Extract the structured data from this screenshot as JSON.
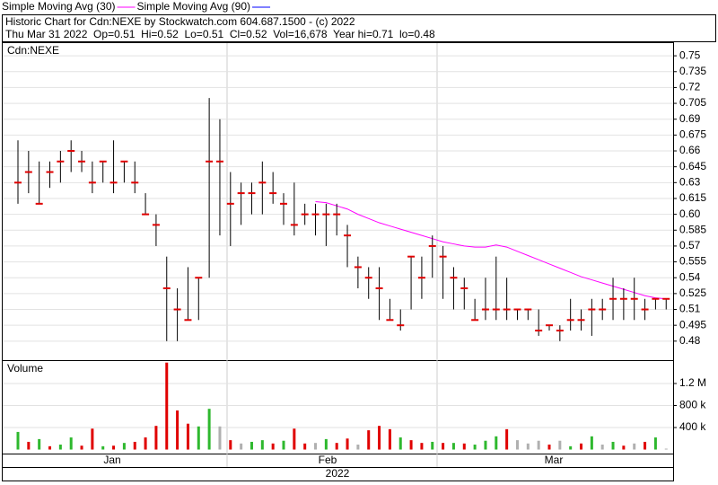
{
  "header": {
    "title": "Historic Chart for Cdn:NEXE by Stockwatch.com 604.687.1500 - (c) 2022",
    "info": "Thu Mar 31 2022  Op=0.51  Hi=0.52  Lo=0.51  Cl=0.52  Vol=16,678  Year hi=0.71  lo=0.48"
  },
  "x_labels": [
    "Jan",
    "Feb",
    "Mar"
  ],
  "year": "2022",
  "chart_data": [
    {
      "type": "ohlc",
      "label": "Cdn:NEXE",
      "color": "#000000",
      "close_color": "#e00000",
      "high": [
        0.67,
        0.66,
        0.65,
        0.65,
        0.66,
        0.67,
        0.66,
        0.65,
        0.65,
        0.67,
        0.65,
        0.65,
        0.62,
        0.6,
        0.56,
        0.53,
        0.55,
        0.54,
        0.71,
        0.69,
        0.64,
        0.63,
        0.63,
        0.65,
        0.64,
        0.62,
        0.63,
        0.61,
        0.61,
        0.61,
        0.61,
        0.59,
        0.56,
        0.55,
        0.55,
        0.52,
        0.51,
        0.56,
        0.56,
        0.58,
        0.57,
        0.55,
        0.54,
        0.52,
        0.54,
        0.56,
        0.54,
        0.51,
        0.51,
        0.51,
        0.495,
        0.495,
        0.52,
        0.51,
        0.52,
        0.52,
        0.54,
        0.53,
        0.54,
        0.52,
        0.52,
        0.52
      ],
      "low": [
        0.61,
        0.62,
        0.61,
        0.625,
        0.63,
        0.64,
        0.64,
        0.62,
        0.63,
        0.62,
        0.63,
        0.62,
        0.6,
        0.57,
        0.48,
        0.48,
        0.5,
        0.5,
        0.54,
        0.58,
        0.57,
        0.59,
        0.6,
        0.6,
        0.61,
        0.59,
        0.58,
        0.59,
        0.58,
        0.57,
        0.58,
        0.55,
        0.53,
        0.52,
        0.5,
        0.5,
        0.49,
        0.51,
        0.52,
        0.54,
        0.52,
        0.51,
        0.51,
        0.5,
        0.5,
        0.5,
        0.5,
        0.5,
        0.5,
        0.485,
        0.49,
        0.48,
        0.49,
        0.49,
        0.485,
        0.5,
        0.5,
        0.5,
        0.5,
        0.5,
        0.51,
        0.51
      ],
      "close": [
        0.63,
        0.64,
        0.61,
        0.64,
        0.65,
        0.66,
        0.65,
        0.63,
        0.65,
        0.63,
        0.65,
        0.63,
        0.6,
        0.59,
        0.53,
        0.51,
        0.5,
        0.54,
        0.65,
        0.65,
        0.61,
        0.62,
        0.62,
        0.63,
        0.62,
        0.61,
        0.59,
        0.6,
        0.6,
        0.6,
        0.6,
        0.58,
        0.55,
        0.54,
        0.53,
        0.5,
        0.495,
        0.56,
        0.54,
        0.57,
        0.56,
        0.54,
        0.53,
        0.5,
        0.51,
        0.51,
        0.51,
        0.51,
        0.51,
        0.49,
        0.495,
        0.49,
        0.5,
        0.5,
        0.51,
        0.51,
        0.52,
        0.52,
        0.52,
        0.51,
        0.52,
        0.52
      ],
      "series": [
        {
          "name": "Simple Moving Avg (30)",
          "color": "#ff00ff",
          "values": [
            null,
            null,
            null,
            null,
            null,
            null,
            null,
            null,
            null,
            null,
            null,
            null,
            null,
            null,
            null,
            null,
            null,
            null,
            null,
            null,
            null,
            null,
            null,
            null,
            null,
            null,
            null,
            null,
            0.612,
            0.611,
            0.608,
            0.605,
            0.6,
            0.596,
            0.592,
            0.589,
            0.586,
            0.583,
            0.58,
            0.577,
            0.574,
            0.572,
            0.57,
            0.569,
            0.569,
            0.571,
            0.569,
            0.565,
            0.561,
            0.557,
            0.553,
            0.549,
            0.545,
            0.541,
            0.538,
            0.535,
            0.532,
            0.529,
            0.526,
            0.523,
            0.521,
            0.52
          ]
        },
        {
          "name": "Simple Moving Avg (90)",
          "color": "#0000ff",
          "values": [
            null,
            null,
            null,
            null,
            null,
            null,
            null,
            null,
            null,
            null,
            null,
            null,
            null,
            null,
            null,
            null,
            null,
            null,
            null,
            null,
            null,
            null,
            null,
            null,
            null,
            null,
            null,
            null,
            null,
            null,
            null,
            null,
            null,
            null,
            null,
            null,
            null,
            null,
            null,
            null,
            null,
            null,
            null,
            null,
            null,
            null,
            null,
            null,
            null,
            null,
            null,
            null,
            null,
            null,
            null,
            null,
            null,
            null,
            null,
            null,
            null,
            null
          ]
        }
      ],
      "ylim": [
        0.462,
        0.762
      ],
      "yticks": [
        0.75,
        0.735,
        0.72,
        0.705,
        0.69,
        0.675,
        0.66,
        0.645,
        0.63,
        0.615,
        {
          "value": 0.6,
          "label": "0.60"
        },
        0.585,
        0.57,
        0.555,
        0.54,
        0.525,
        0.51,
        0.495,
        0.48
      ],
      "grid": true
    },
    {
      "type": "bar",
      "label": "Volume",
      "values": [
        320000,
        140000,
        190000,
        60000,
        90000,
        220000,
        70000,
        380000,
        60000,
        70000,
        120000,
        140000,
        220000,
        430000,
        1580000,
        710000,
        470000,
        420000,
        740000,
        420000,
        170000,
        110000,
        140000,
        170000,
        110000,
        160000,
        380000,
        110000,
        120000,
        190000,
        120000,
        200000,
        90000,
        350000,
        430000,
        370000,
        220000,
        170000,
        120000,
        140000,
        120000,
        120000,
        110000,
        90000,
        160000,
        240000,
        370000,
        170000,
        110000,
        160000,
        90000,
        160000,
        60000,
        110000,
        240000,
        90000,
        140000,
        70000,
        110000,
        140000,
        220000,
        16678
      ],
      "colors": [
        "#2eb82e",
        "#e00000",
        "#2eb82e",
        "#e00000",
        "#2eb82e",
        "#2eb82e",
        "#e00000",
        "#e00000",
        "#2eb82e",
        "#e00000",
        "#2eb82e",
        "#e00000",
        "#e00000",
        "#e00000",
        "#e00000",
        "#e00000",
        "#e00000",
        "#2eb82e",
        "#2eb82e",
        "#b0b0b0",
        "#e00000",
        "#b0b0b0",
        "#2eb82e",
        "#2eb82e",
        "#e00000",
        "#2eb82e",
        "#e00000",
        "#e00000",
        "#b0b0b0",
        "#2eb82e",
        "#e00000",
        "#e00000",
        "#b0b0b0",
        "#e00000",
        "#e00000",
        "#e00000",
        "#2eb82e",
        "#e00000",
        "#e00000",
        "#2eb82e",
        "#e00000",
        "#2eb82e",
        "#e00000",
        "#2eb82e",
        "#2eb82e",
        "#2eb82e",
        "#e00000",
        "#b0b0b0",
        "#b0b0b0",
        "#b0b0b0",
        "#e00000",
        "#b0b0b0",
        "#2eb82e",
        "#e00000",
        "#2eb82e",
        "#b0b0b0",
        "#2eb82e",
        "#e00000",
        "#b0b0b0",
        "#e00000",
        "#2eb82e",
        "#b0b0b0"
      ],
      "ylim": [
        -73000,
        1608000
      ],
      "yticks": [
        {
          "value": 400000,
          "label": "400 k"
        },
        {
          "value": 800000,
          "label": "800 k"
        },
        {
          "value": 1200000,
          "label": "1.2 M"
        }
      ],
      "grid": true
    }
  ]
}
